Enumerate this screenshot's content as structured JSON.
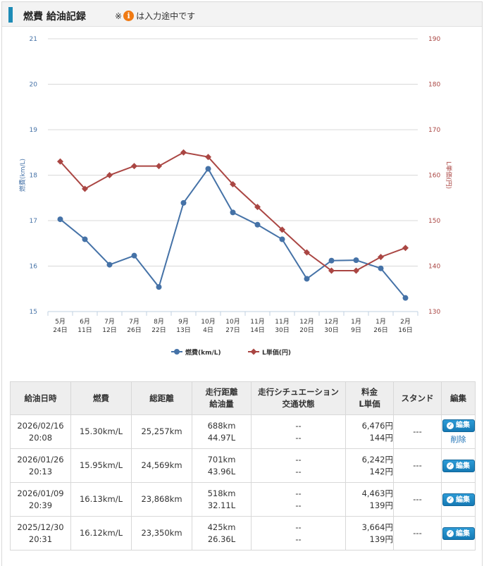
{
  "header": {
    "title": "燃費 給油記録",
    "note_prefix": "※",
    "info_icon_glyph": "i",
    "note_suffix": "は入力途中です"
  },
  "chart_data": {
    "type": "line",
    "title": "",
    "categories": [
      [
        "5月",
        "24日"
      ],
      [
        "6月",
        "11日"
      ],
      [
        "7月",
        "12日"
      ],
      [
        "7月",
        "26日"
      ],
      [
        "8月",
        "22日"
      ],
      [
        "9月",
        "13日"
      ],
      [
        "10月",
        "4日"
      ],
      [
        "10月",
        "27日"
      ],
      [
        "11月",
        "14日"
      ],
      [
        "11月",
        "30日"
      ],
      [
        "12月",
        "20日"
      ],
      [
        "12月",
        "30日"
      ],
      [
        "1月",
        "9日"
      ],
      [
        "1月",
        "26日"
      ],
      [
        "2月",
        "16日"
      ]
    ],
    "y_left": {
      "label": "燃費(km/L)",
      "ylim": [
        15,
        21
      ],
      "ticks": [
        15,
        16,
        17,
        18,
        19,
        20,
        21
      ]
    },
    "y_right": {
      "label": "L単価(円)",
      "ylim": [
        130,
        190
      ],
      "ticks": [
        130,
        140,
        150,
        160,
        170,
        180,
        190
      ]
    },
    "series": [
      {
        "name": "燃費(km/L)",
        "axis": "left",
        "color": "#4572a7",
        "marker": "circle",
        "values": [
          17.03,
          16.59,
          16.03,
          16.23,
          15.54,
          17.39,
          18.14,
          17.18,
          16.91,
          16.59,
          15.72,
          16.12,
          16.13,
          15.95,
          15.3
        ]
      },
      {
        "name": "L単価(円)",
        "axis": "right",
        "color": "#aa4643",
        "marker": "diamond",
        "values": [
          163,
          157,
          160,
          162,
          162,
          165,
          164,
          158,
          153,
          148,
          143,
          139,
          139,
          142,
          144
        ]
      }
    ]
  },
  "table": {
    "headers": [
      [
        "給油日時"
      ],
      [
        "燃費"
      ],
      [
        "総距離"
      ],
      [
        "走行距離",
        "給油量"
      ],
      [
        "走行シチュエーション",
        "交通状態"
      ],
      [
        "料金",
        "L単価"
      ],
      [
        "スタンド"
      ],
      [
        "編集"
      ]
    ],
    "edit_label": "編集",
    "delete_label": "削除",
    "rows": [
      {
        "date": "2026/02/16",
        "time": "20:08",
        "fuel_economy": "15.30km/L",
        "total_distance": "25,257km",
        "distance": "688km",
        "amount": "44.97L",
        "situation": "--",
        "traffic": "--",
        "price": "6,476円",
        "unit_price": "144円",
        "stand": "---",
        "deletable": true
      },
      {
        "date": "2026/01/26",
        "time": "20:13",
        "fuel_economy": "15.95km/L",
        "total_distance": "24,569km",
        "distance": "701km",
        "amount": "43.96L",
        "situation": "--",
        "traffic": "--",
        "price": "6,242円",
        "unit_price": "142円",
        "stand": "---",
        "deletable": false
      },
      {
        "date": "2026/01/09",
        "time": "20:39",
        "fuel_economy": "16.13km/L",
        "total_distance": "23,868km",
        "distance": "518km",
        "amount": "32.11L",
        "situation": "--",
        "traffic": "--",
        "price": "4,463円",
        "unit_price": "139円",
        "stand": "---",
        "deletable": false
      },
      {
        "date": "2025/12/30",
        "time": "20:31",
        "fuel_economy": "16.12km/L",
        "total_distance": "23,350km",
        "distance": "425km",
        "amount": "26.36L",
        "situation": "--",
        "traffic": "--",
        "price": "3,664円",
        "unit_price": "139円",
        "stand": "---",
        "deletable": false
      }
    ]
  }
}
